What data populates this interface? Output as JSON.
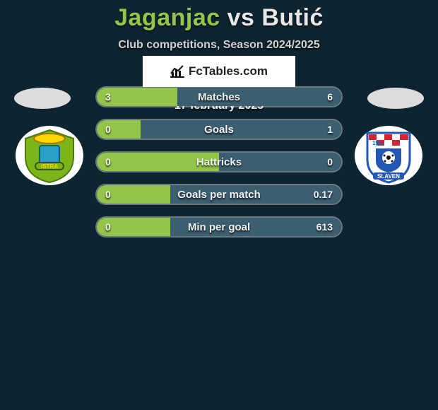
{
  "title": {
    "player1": "Jaganjac",
    "vs": "vs",
    "player2": "Butić",
    "player1_color": "#93c54b",
    "player2_color": "#e8e8e8"
  },
  "subtitle": "Club competitions, Season 2024/2025",
  "theme": {
    "background_color": "#0e2430",
    "bar_border_color": "rgba(255,255,255,0.35)",
    "bar_bg_color": "rgba(255,255,255,0.06)",
    "left_fill_color": "#93c54b",
    "right_fill_color": "#3b5f70",
    "text_color": "#e8e8e8"
  },
  "bars": [
    {
      "label": "Matches",
      "left_value": "3",
      "right_value": "6",
      "left_pct": 33,
      "right_pct": 67
    },
    {
      "label": "Goals",
      "left_value": "0",
      "right_value": "1",
      "left_pct": 18,
      "right_pct": 82
    },
    {
      "label": "Hattricks",
      "left_value": "0",
      "right_value": "0",
      "left_pct": 50,
      "right_pct": 50
    },
    {
      "label": "Goals per match",
      "left_value": "0",
      "right_value": "0.17",
      "left_pct": 30,
      "right_pct": 70
    },
    {
      "label": "Min per goal",
      "left_value": "0",
      "right_value": "613",
      "left_pct": 30,
      "right_pct": 70
    }
  ],
  "brand": "FcTables.com",
  "date": "17 february 2025",
  "clubs": {
    "left": {
      "name": "Istra 1961",
      "badge_bg": "#ffffff",
      "shield_color": "#7cb518",
      "accent_color": "#ffd400",
      "text_on_shield": "ISTRA"
    },
    "right": {
      "name": "Slaven Koprivnica",
      "badge_bg": "#ffffff",
      "top_red": "#d22730",
      "blue": "#2457b3",
      "year": "1907",
      "text_on_shield": "SLAVEN"
    }
  }
}
